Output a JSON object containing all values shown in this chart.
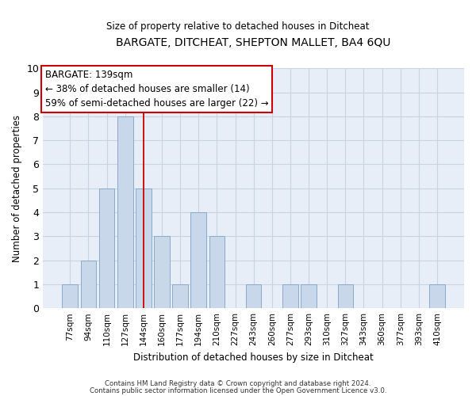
{
  "title": "BARGATE, DITCHEAT, SHEPTON MALLET, BA4 6QU",
  "subtitle": "Size of property relative to detached houses in Ditcheat",
  "xlabel": "Distribution of detached houses by size in Ditcheat",
  "ylabel": "Number of detached properties",
  "categories": [
    "77sqm",
    "94sqm",
    "110sqm",
    "127sqm",
    "144sqm",
    "160sqm",
    "177sqm",
    "194sqm",
    "210sqm",
    "227sqm",
    "243sqm",
    "260sqm",
    "277sqm",
    "293sqm",
    "310sqm",
    "327sqm",
    "343sqm",
    "360sqm",
    "377sqm",
    "393sqm",
    "410sqm"
  ],
  "values": [
    1,
    2,
    5,
    8,
    5,
    3,
    1,
    4,
    3,
    0,
    1,
    0,
    1,
    1,
    0,
    1,
    0,
    0,
    0,
    0,
    1
  ],
  "bar_color": "#c8d8ea",
  "bar_edgecolor": "#88aaca",
  "highlight_index": 4,
  "highlight_line_color": "#cc0000",
  "ylim": [
    0,
    10
  ],
  "yticks": [
    0,
    1,
    2,
    3,
    4,
    5,
    6,
    7,
    8,
    9,
    10
  ],
  "annotation_title": "BARGATE: 139sqm",
  "annotation_line1": "← 38% of detached houses are smaller (14)",
  "annotation_line2": "59% of semi-detached houses are larger (22) →",
  "annotation_box_color": "#ffffff",
  "annotation_box_edgecolor": "#cc0000",
  "grid_color": "#c8d4e4",
  "bg_color": "#e8eef8",
  "footer1": "Contains HM Land Registry data © Crown copyright and database right 2024.",
  "footer2": "Contains public sector information licensed under the Open Government Licence v3.0."
}
